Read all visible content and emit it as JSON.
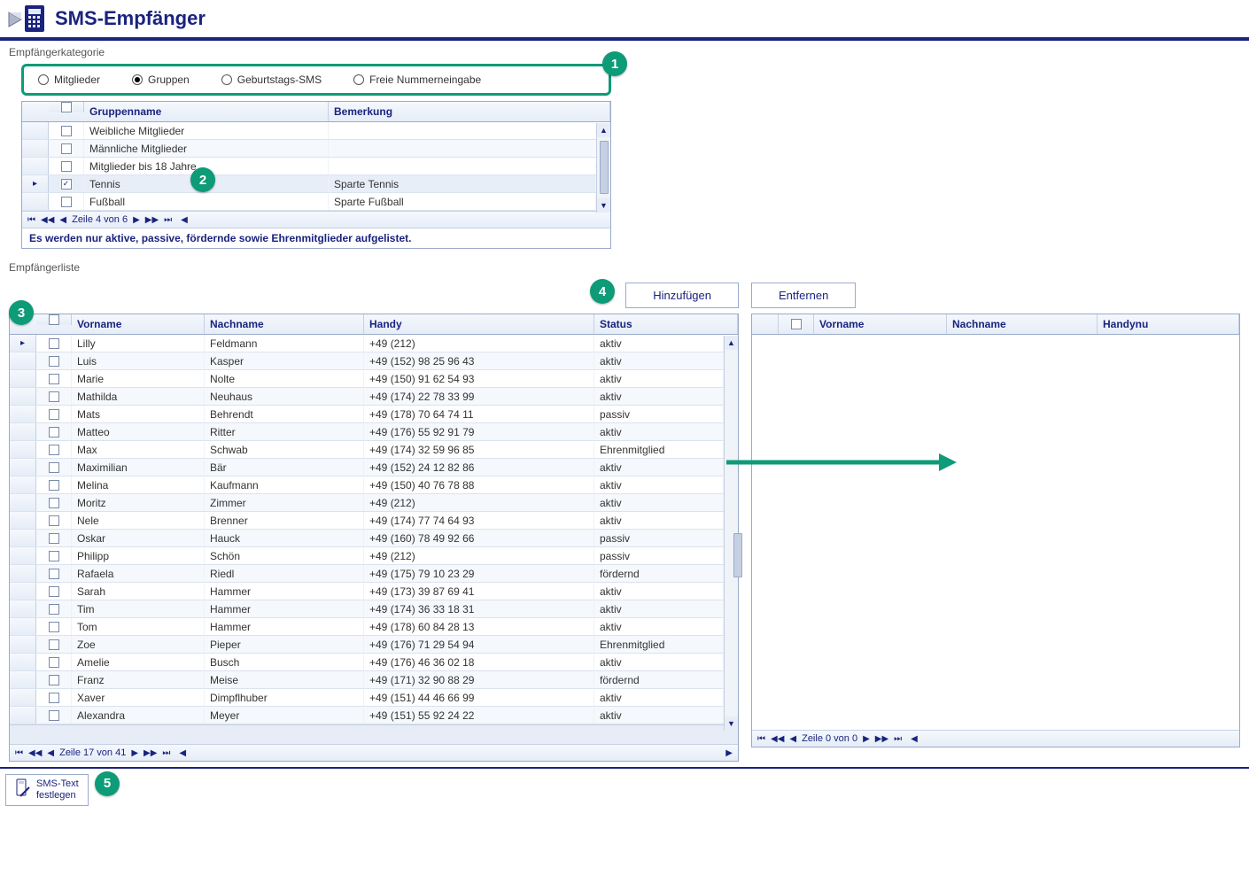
{
  "colors": {
    "accent_dark_blue": "#1a237e",
    "annotation_green": "#0e9b77",
    "header_grad_top": "#f5f8fd",
    "header_grad_bottom": "#e6edf7",
    "border_blue": "#9aaac9"
  },
  "header": {
    "title": "SMS-Empfänger"
  },
  "annotations": {
    "b1": "1",
    "b2": "2",
    "b3": "3",
    "b4": "4",
    "b5": "5"
  },
  "section_labels": {
    "category": "Empfängerkategorie",
    "list": "Empfängerliste"
  },
  "category": {
    "options": [
      {
        "label": "Mitglieder",
        "selected": false
      },
      {
        "label": "Gruppen",
        "selected": true
      },
      {
        "label": "Geburtstags-SMS",
        "selected": false
      },
      {
        "label": "Freie Nummerneingabe",
        "selected": false
      }
    ],
    "columns": {
      "name": "Gruppenname",
      "remark": "Bemerkung"
    },
    "rows": [
      {
        "checked": false,
        "current": false,
        "name": "Weibliche Mitglieder",
        "remark": ""
      },
      {
        "checked": false,
        "current": false,
        "name": "Männliche Mitglieder",
        "remark": ""
      },
      {
        "checked": false,
        "current": false,
        "name": "Mitglieder bis 18 Jahre",
        "remark": ""
      },
      {
        "checked": true,
        "current": true,
        "name": "Tennis",
        "remark": "Sparte Tennis"
      },
      {
        "checked": false,
        "current": false,
        "name": "Fußball",
        "remark": "Sparte Fußball"
      }
    ],
    "nav": "Zeile 4 von 6",
    "info": "Es werden nur aktive, passive, fördernde sowie Ehrenmitglieder aufgelistet."
  },
  "actions": {
    "add": "Hinzufügen",
    "remove": "Entfernen"
  },
  "left_grid": {
    "columns": {
      "first": "Vorname",
      "last": "Nachname",
      "mobile": "Handy",
      "status": "Status"
    },
    "rows": [
      {
        "first": "Lilly",
        "last": "Feldmann",
        "mobile": "+49 (212)",
        "status": "aktiv",
        "current": true
      },
      {
        "first": "Luis",
        "last": "Kasper",
        "mobile": "+49 (152) 98 25 96 43",
        "status": "aktiv"
      },
      {
        "first": "Marie",
        "last": "Nolte",
        "mobile": "+49 (150) 91 62 54 93",
        "status": "aktiv"
      },
      {
        "first": "Mathilda",
        "last": "Neuhaus",
        "mobile": "+49 (174) 22 78 33 99",
        "status": "aktiv"
      },
      {
        "first": "Mats",
        "last": "Behrendt",
        "mobile": "+49 (178) 70 64 74 11",
        "status": "passiv"
      },
      {
        "first": "Matteo",
        "last": "Ritter",
        "mobile": "+49 (176) 55 92 91 79",
        "status": "aktiv"
      },
      {
        "first": "Max",
        "last": "Schwab",
        "mobile": "+49 (174) 32 59 96 85",
        "status": "Ehrenmitglied"
      },
      {
        "first": "Maximilian",
        "last": "Bär",
        "mobile": "+49 (152) 24 12 82 86",
        "status": "aktiv"
      },
      {
        "first": "Melina",
        "last": "Kaufmann",
        "mobile": "+49 (150) 40 76 78 88",
        "status": "aktiv"
      },
      {
        "first": "Moritz",
        "last": "Zimmer",
        "mobile": "+49 (212)",
        "status": "aktiv"
      },
      {
        "first": "Nele",
        "last": "Brenner",
        "mobile": "+49 (174) 77 74 64 93",
        "status": "aktiv"
      },
      {
        "first": "Oskar",
        "last": "Hauck",
        "mobile": "+49 (160) 78 49 92 66",
        "status": "passiv"
      },
      {
        "first": "Philipp",
        "last": "Schön",
        "mobile": "+49 (212)",
        "status": "passiv"
      },
      {
        "first": "Rafaela",
        "last": "Riedl",
        "mobile": "+49 (175) 79 10 23 29",
        "status": "fördernd"
      },
      {
        "first": "Sarah",
        "last": "Hammer",
        "mobile": "+49 (173) 39 87 69 41",
        "status": "aktiv"
      },
      {
        "first": "Tim",
        "last": "Hammer",
        "mobile": "+49 (174) 36 33 18 31",
        "status": "aktiv"
      },
      {
        "first": "Tom",
        "last": "Hammer",
        "mobile": "+49 (178) 60 84 28 13",
        "status": "aktiv"
      },
      {
        "first": "Zoe",
        "last": "Pieper",
        "mobile": "+49 (176) 71 29 54 94",
        "status": "Ehrenmitglied"
      },
      {
        "first": "Amelie",
        "last": "Busch",
        "mobile": "+49 (176) 46 36 02 18",
        "status": "aktiv"
      },
      {
        "first": "Franz",
        "last": "Meise",
        "mobile": "+49 (171) 32 90 88 29",
        "status": "fördernd"
      },
      {
        "first": "Xaver",
        "last": "Dimpflhuber",
        "mobile": "+49 (151) 44 46 66 99",
        "status": "aktiv"
      },
      {
        "first": "Alexandra",
        "last": "Meyer",
        "mobile": "+49 (151) 55 92 24 22",
        "status": "aktiv"
      }
    ],
    "nav": "Zeile 17 von 41"
  },
  "right_grid": {
    "columns": {
      "first": "Vorname",
      "last": "Nachname",
      "mobile": "Handynu"
    },
    "nav": "Zeile 0 von 0"
  },
  "footer": {
    "sms_text_line1": "SMS-Text",
    "sms_text_line2": "festlegen"
  }
}
